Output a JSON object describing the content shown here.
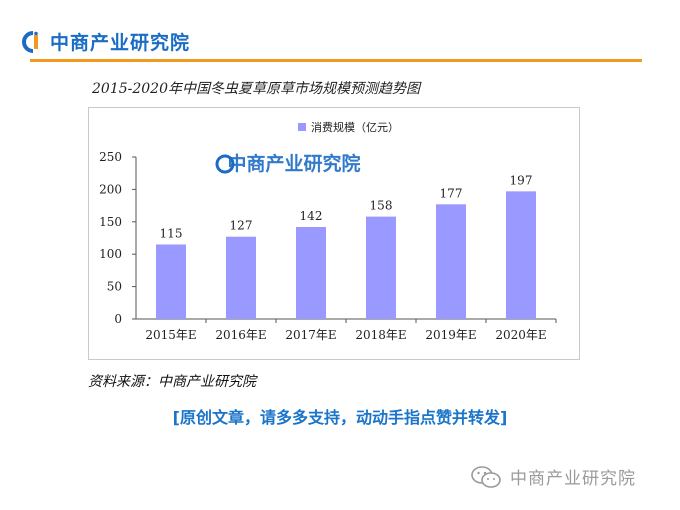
{
  "header": {
    "brand": "中商产业研究院",
    "accent_color": "#f39a1e",
    "brand_color": "#1b6cc4"
  },
  "chart_data": {
    "type": "bar",
    "title": "2015-2020年中国冬虫夏草原草市场规模预测趋势图",
    "categories": [
      "2015年E",
      "2016年E",
      "2017年E",
      "2018年E",
      "2019年E",
      "2020年E"
    ],
    "series": [
      {
        "name": "消费规模（亿元）",
        "values": [
          115,
          127,
          142,
          158,
          177,
          197
        ],
        "color": "#9999ff"
      }
    ],
    "ylim": [
      0,
      250
    ],
    "yticks": [
      0,
      50,
      100,
      150,
      200,
      250
    ],
    "grid": false,
    "legend_position": "top-center",
    "watermark": "中商产业研究院"
  },
  "source": "资料来源：中商产业研究院",
  "cta": "[原创文章，请多多支持，动动手指点赞并转发]",
  "footer": {
    "brand": "中商产业研究院",
    "icon": "wechat-icon"
  }
}
